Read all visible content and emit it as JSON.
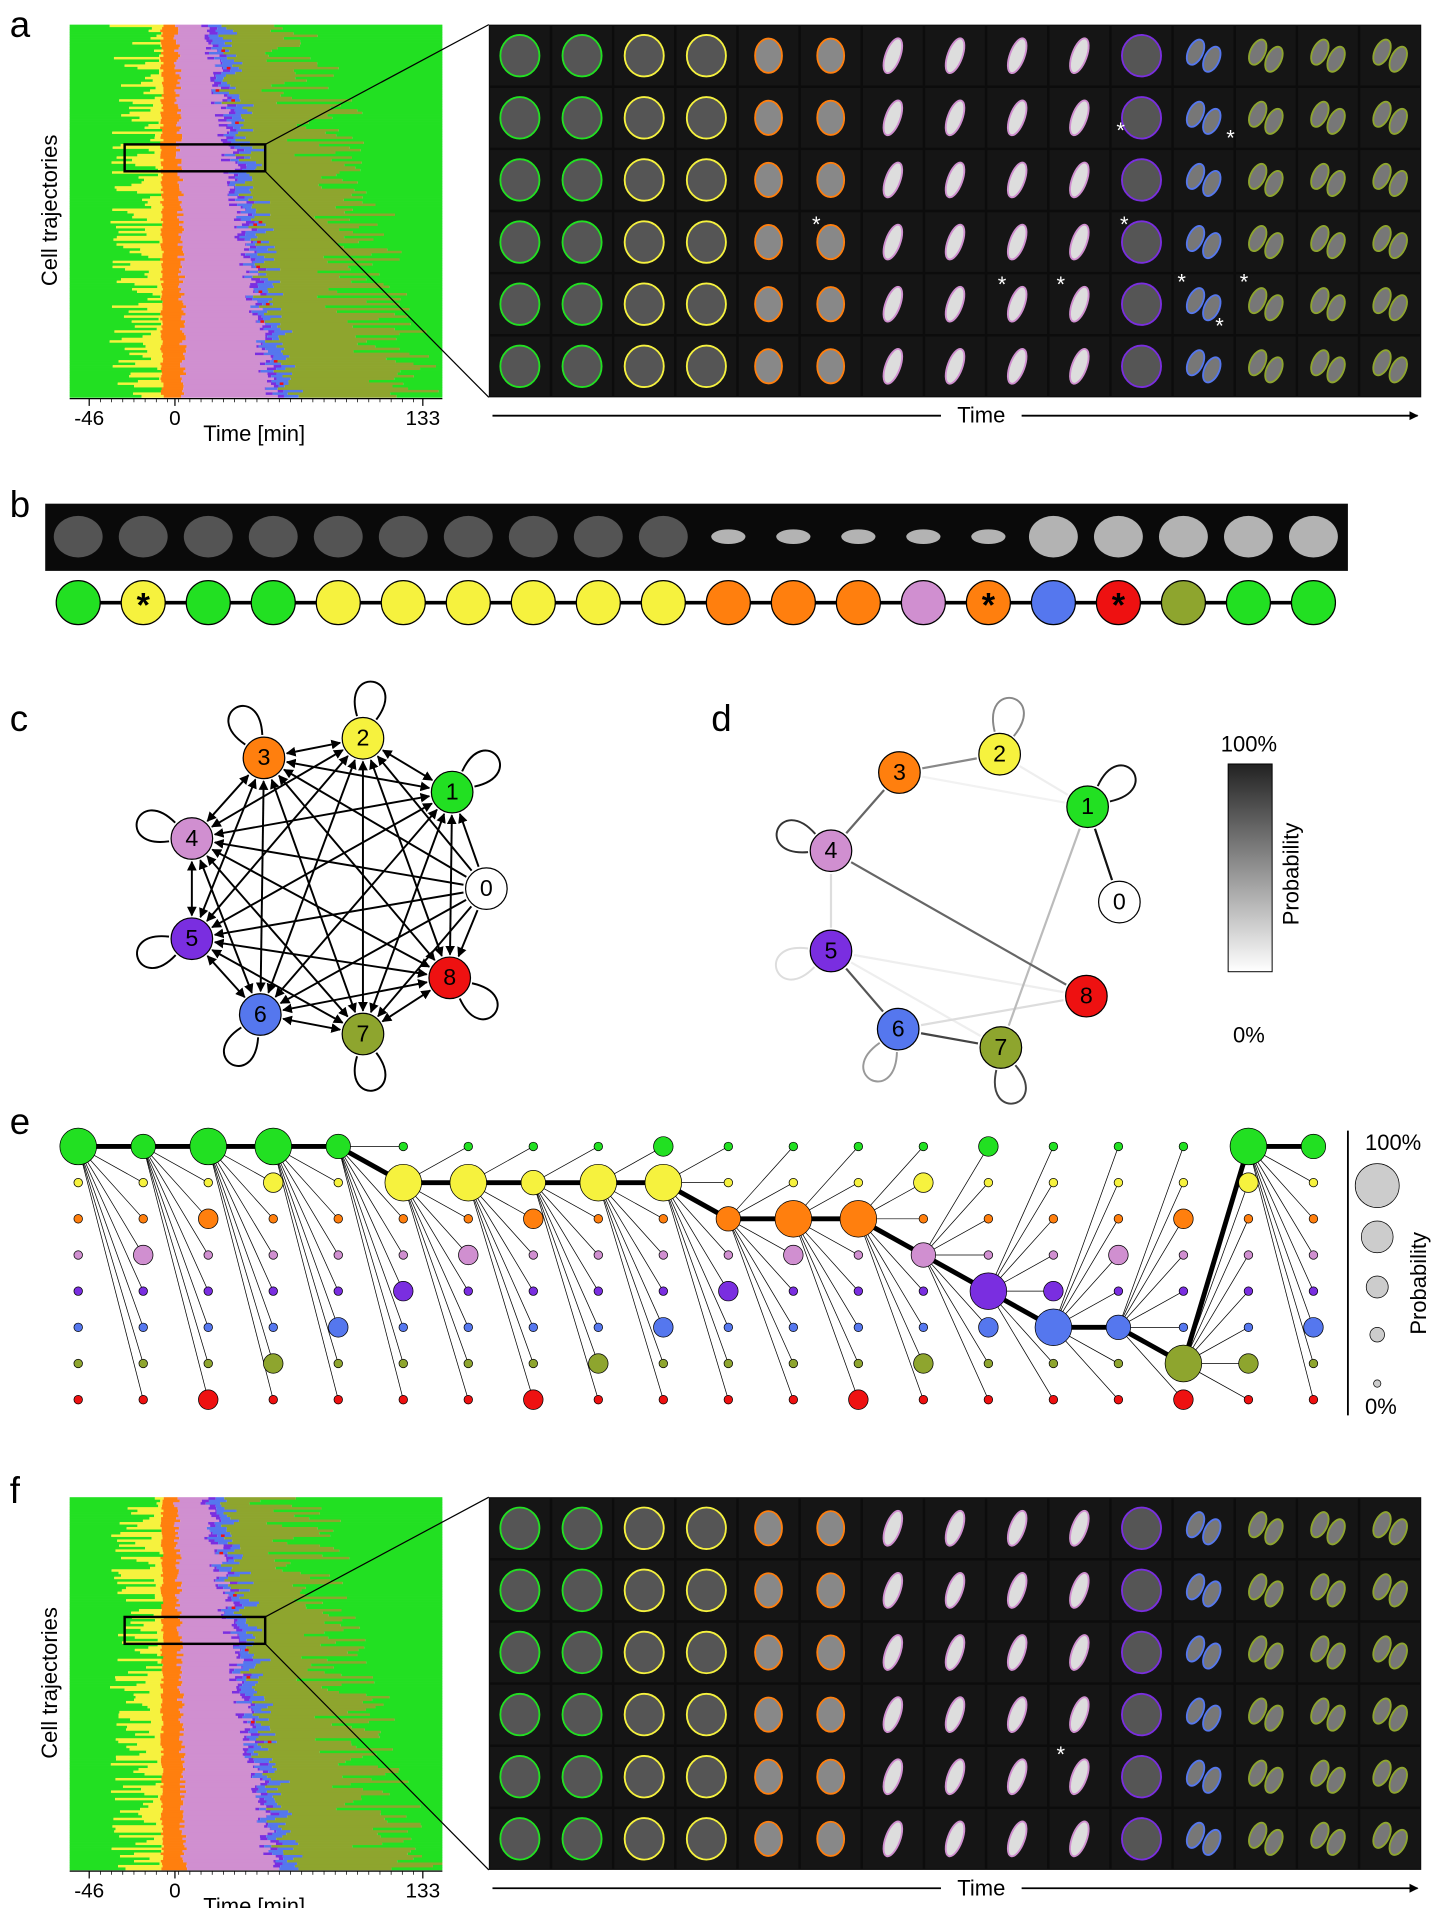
{
  "panels": [
    "a",
    "b",
    "c",
    "d",
    "e",
    "f"
  ],
  "heatmap": {
    "ylabel": "Cell trajectories",
    "xlabel": "Time [min]",
    "xlim": [
      -46,
      133
    ],
    "xticks": [
      -46,
      0,
      133
    ]
  },
  "time_label": "Time",
  "states": [
    {
      "label": "0",
      "color": "#ffffff"
    },
    {
      "label": "1",
      "color": "#22e022"
    },
    {
      "label": "2",
      "color": "#f6f23e"
    },
    {
      "label": "3",
      "color": "#ff7f0e"
    },
    {
      "label": "4",
      "color": "#d08fd0"
    },
    {
      "label": "5",
      "color": "#7a2ee0"
    },
    {
      "label": "6",
      "color": "#5577ee"
    },
    {
      "label": "7",
      "color": "#8ea52e"
    },
    {
      "label": "8",
      "color": "#ee1111"
    }
  ],
  "sequence": [
    {
      "state": 1
    },
    {
      "state": 2,
      "mark": "*"
    },
    {
      "state": 1
    },
    {
      "state": 1
    },
    {
      "state": 2
    },
    {
      "state": 2
    },
    {
      "state": 2
    },
    {
      "state": 2
    },
    {
      "state": 2
    },
    {
      "state": 2
    },
    {
      "state": 3
    },
    {
      "state": 3
    },
    {
      "state": 3
    },
    {
      "state": 4
    },
    {
      "state": 3,
      "mark": "*"
    },
    {
      "state": 6
    },
    {
      "state": 8,
      "mark": "*"
    },
    {
      "state": 7
    },
    {
      "state": 1
    },
    {
      "state": 1
    }
  ],
  "colorbar": {
    "max": "100%",
    "min": "0%",
    "label": "Probability"
  }
}
